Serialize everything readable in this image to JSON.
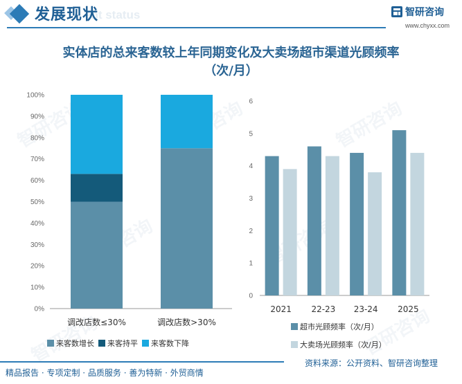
{
  "header": {
    "title": "发展现状",
    "ghost_text": "ent status",
    "logo_text": "智研咨询",
    "logo_url": "www.chyxx.com"
  },
  "watermark": "智研咨询",
  "chart_title_line1": "实体店的总来客数较上年同期变化及大卖场超市渠道光顾频率",
  "chart_title_line2": "（次/月）",
  "chart_data": [
    {
      "type": "bar",
      "stacked": true,
      "categories": [
        "调改店数≤30%",
        "调改店数>30%"
      ],
      "series": [
        {
          "name": "来客数增长",
          "values": [
            50,
            75
          ],
          "color": "#5b8fa8"
        },
        {
          "name": "来客持平",
          "values": [
            13,
            0
          ],
          "color": "#145a7a"
        },
        {
          "name": "来客数下降",
          "values": [
            37,
            25
          ],
          "color": "#1aa9df"
        }
      ],
      "ylim": [
        0,
        100
      ],
      "yticks": [
        "0%",
        "10%",
        "20%",
        "30%",
        "40%",
        "50%",
        "60%",
        "70%",
        "80%",
        "90%",
        "100%"
      ],
      "legend_position": "bottom"
    },
    {
      "type": "bar",
      "categories": [
        "2021",
        "22-23",
        "23-24",
        "2025"
      ],
      "series": [
        {
          "name": "超市光顾频率（次/月）",
          "values": [
            4.3,
            4.6,
            4.4,
            5.1
          ],
          "color": "#5b8fa8"
        },
        {
          "name": "大卖场光顾频率（次/月）",
          "values": [
            3.9,
            4.3,
            3.8,
            4.4
          ],
          "color": "#c3d6df"
        }
      ],
      "ylim": [
        0,
        6
      ],
      "yticks": [
        "0",
        "1",
        "2",
        "3",
        "4",
        "5",
        "6"
      ],
      "legend_position": "bottom"
    }
  ],
  "footer": {
    "left": "精品报告 · 专项定制 · 品质服务 · 善为特新 · 外贸商情",
    "right": "资料来源：公开资料、智研咨询整理"
  }
}
